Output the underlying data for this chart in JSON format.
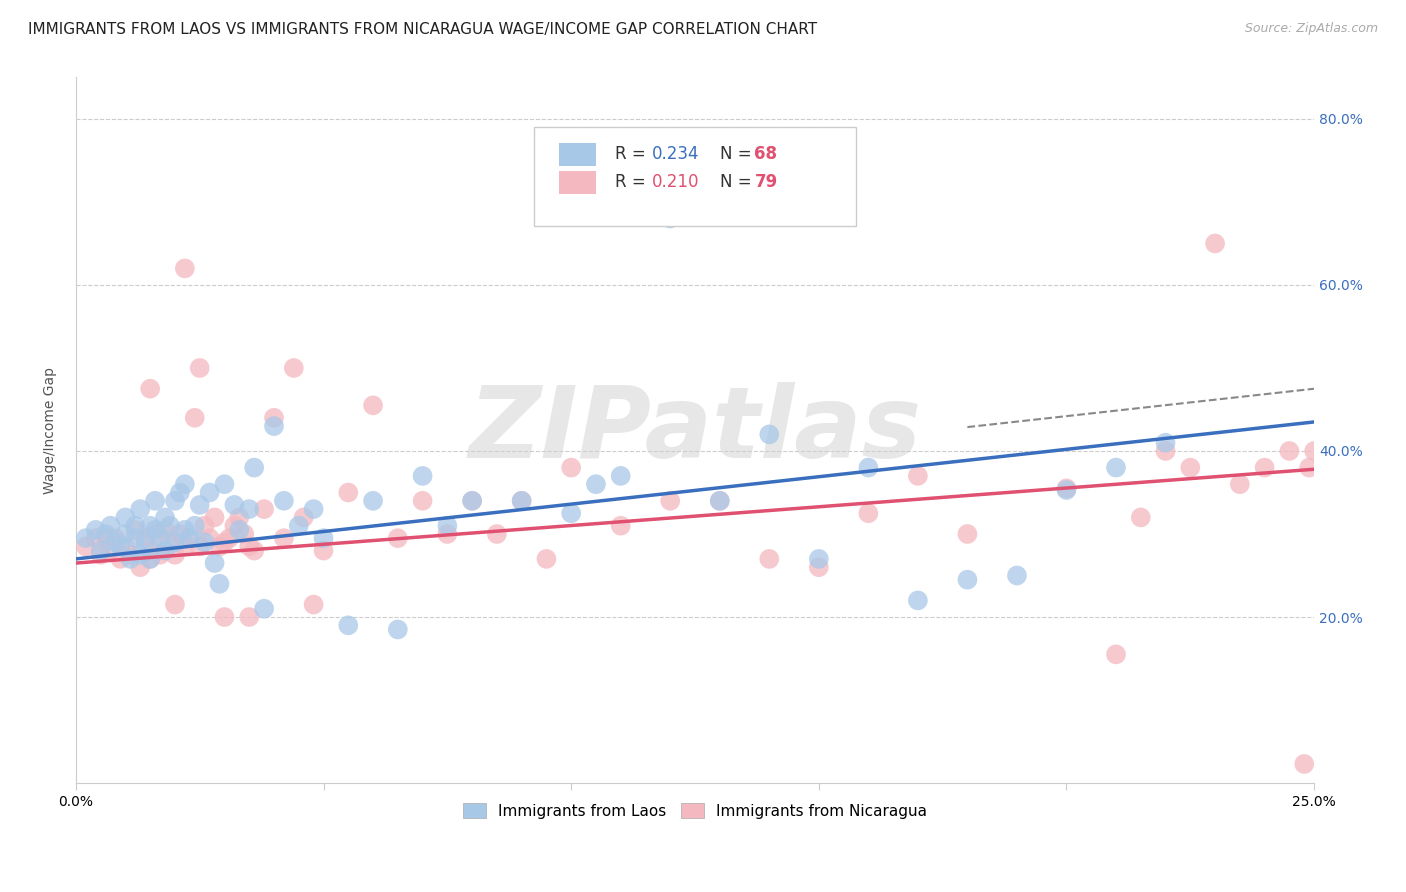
{
  "title": "IMMIGRANTS FROM LAOS VS IMMIGRANTS FROM NICARAGUA WAGE/INCOME GAP CORRELATION CHART",
  "source": "Source: ZipAtlas.com",
  "ylabel": "Wage/Income Gap",
  "xlim": [
    0.0,
    0.25
  ],
  "ylim": [
    0.0,
    0.85
  ],
  "x_ticks": [
    0.0,
    0.05,
    0.1,
    0.15,
    0.2,
    0.25
  ],
  "x_tick_labels": [
    "0.0%",
    "",
    "",
    "",
    "",
    "25.0%"
  ],
  "y_ticks": [
    0.2,
    0.4,
    0.6,
    0.8
  ],
  "y_tick_labels": [
    "20.0%",
    "40.0%",
    "60.0%",
    "80.0%"
  ],
  "laos_color": "#a8c8e8",
  "nicaragua_color": "#f4b8c0",
  "laos_line_color": "#3a6fbf",
  "nicaragua_line_color": "#e05070",
  "laos_R": 0.234,
  "laos_N": 68,
  "nicaragua_R": 0.21,
  "nicaragua_N": 79,
  "laos_scatter_x": [
    0.002,
    0.004,
    0.005,
    0.006,
    0.007,
    0.008,
    0.009,
    0.01,
    0.01,
    0.011,
    0.012,
    0.012,
    0.013,
    0.013,
    0.014,
    0.015,
    0.015,
    0.016,
    0.016,
    0.017,
    0.018,
    0.018,
    0.019,
    0.02,
    0.02,
    0.021,
    0.022,
    0.022,
    0.023,
    0.024,
    0.025,
    0.026,
    0.027,
    0.028,
    0.029,
    0.03,
    0.032,
    0.033,
    0.035,
    0.036,
    0.038,
    0.04,
    0.042,
    0.045,
    0.048,
    0.05,
    0.055,
    0.06,
    0.065,
    0.07,
    0.075,
    0.08,
    0.09,
    0.1,
    0.105,
    0.11,
    0.12,
    0.125,
    0.13,
    0.14,
    0.15,
    0.16,
    0.17,
    0.18,
    0.19,
    0.2,
    0.21,
    0.22
  ],
  "laos_scatter_y": [
    0.295,
    0.305,
    0.28,
    0.3,
    0.31,
    0.29,
    0.285,
    0.3,
    0.32,
    0.27,
    0.295,
    0.31,
    0.275,
    0.33,
    0.29,
    0.31,
    0.27,
    0.305,
    0.34,
    0.295,
    0.32,
    0.28,
    0.31,
    0.34,
    0.29,
    0.35,
    0.305,
    0.36,
    0.295,
    0.31,
    0.335,
    0.29,
    0.35,
    0.265,
    0.24,
    0.36,
    0.335,
    0.305,
    0.33,
    0.38,
    0.21,
    0.43,
    0.34,
    0.31,
    0.33,
    0.295,
    0.19,
    0.34,
    0.185,
    0.37,
    0.31,
    0.34,
    0.34,
    0.325,
    0.36,
    0.37,
    0.68,
    0.71,
    0.34,
    0.42,
    0.27,
    0.38,
    0.22,
    0.245,
    0.25,
    0.353,
    0.38,
    0.41
  ],
  "nicaragua_scatter_x": [
    0.002,
    0.004,
    0.005,
    0.006,
    0.007,
    0.008,
    0.009,
    0.01,
    0.011,
    0.012,
    0.013,
    0.014,
    0.015,
    0.015,
    0.016,
    0.017,
    0.018,
    0.018,
    0.019,
    0.02,
    0.021,
    0.022,
    0.022,
    0.023,
    0.024,
    0.025,
    0.026,
    0.027,
    0.028,
    0.029,
    0.03,
    0.031,
    0.032,
    0.033,
    0.034,
    0.035,
    0.036,
    0.038,
    0.04,
    0.042,
    0.044,
    0.046,
    0.048,
    0.05,
    0.055,
    0.06,
    0.065,
    0.07,
    0.075,
    0.08,
    0.085,
    0.09,
    0.095,
    0.1,
    0.11,
    0.12,
    0.13,
    0.14,
    0.15,
    0.16,
    0.17,
    0.18,
    0.2,
    0.21,
    0.215,
    0.22,
    0.225,
    0.23,
    0.235,
    0.24,
    0.245,
    0.248,
    0.249,
    0.25,
    0.015,
    0.02,
    0.025,
    0.03,
    0.035
  ],
  "nicaragua_scatter_y": [
    0.285,
    0.295,
    0.275,
    0.295,
    0.28,
    0.295,
    0.27,
    0.285,
    0.275,
    0.305,
    0.26,
    0.295,
    0.28,
    0.27,
    0.3,
    0.275,
    0.28,
    0.305,
    0.29,
    0.275,
    0.3,
    0.62,
    0.285,
    0.295,
    0.44,
    0.285,
    0.31,
    0.295,
    0.32,
    0.285,
    0.29,
    0.295,
    0.31,
    0.32,
    0.3,
    0.285,
    0.28,
    0.33,
    0.44,
    0.295,
    0.5,
    0.32,
    0.215,
    0.28,
    0.35,
    0.455,
    0.295,
    0.34,
    0.3,
    0.34,
    0.3,
    0.34,
    0.27,
    0.38,
    0.31,
    0.34,
    0.34,
    0.27,
    0.26,
    0.325,
    0.37,
    0.3,
    0.355,
    0.155,
    0.32,
    0.4,
    0.38,
    0.65,
    0.36,
    0.38,
    0.4,
    0.023,
    0.38,
    0.4,
    0.475,
    0.215,
    0.5,
    0.2,
    0.2
  ],
  "background_color": "#ffffff",
  "grid_color": "#cccccc",
  "watermark_text": "ZIPatlas",
  "title_fontsize": 11,
  "axis_label_fontsize": 10,
  "tick_fontsize": 10,
  "legend_fontsize": 11
}
